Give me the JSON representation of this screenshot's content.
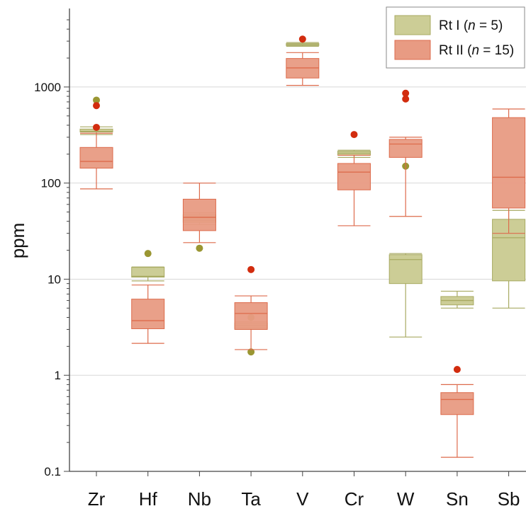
{
  "chart_data": {
    "type": "boxplot",
    "ylabel": "ppm",
    "yscale": "log",
    "ylim": [
      0.1,
      5000
    ],
    "yticks": [
      "0.1",
      "1",
      "10",
      "100",
      "1000"
    ],
    "grid": "horizontal",
    "legend_position": "top-right",
    "categories": [
      "Zr",
      "Hf",
      "Nb",
      "Ta",
      "V",
      "Cr",
      "W",
      "Sn",
      "Sb"
    ],
    "colors": {
      "rt1_fill": "#cccd96",
      "rt1_edge": "#a8aa62",
      "rt1_point": "#9a9632",
      "rt2_fill": "#e89b83",
      "rt2_edge": "#dd6b4c",
      "rt2_point": "#d22c0e"
    },
    "series": [
      {
        "name": "Rt I (n = 5)",
        "legend_main": "Rt I (",
        "legend_n": "n",
        "legend_rest": " = 5)",
        "boxes": [
          {
            "category": "Zr",
            "whisker_low": 320,
            "q1": 340,
            "median": 345,
            "q3": 365,
            "whisker_high": 385,
            "outliers": [
              730
            ]
          },
          {
            "category": "Hf",
            "whisker_low": 9.6,
            "q1": 10.5,
            "median": 10.7,
            "q3": 13.3,
            "whisker_high": 13.4,
            "outliers": [
              18.5
            ]
          },
          {
            "category": "Nb",
            "whisker_low": 37,
            "q1": 39,
            "median": 41,
            "q3": 47,
            "whisker_high": 49,
            "outliers": [
              21
            ]
          },
          {
            "category": "Ta",
            "whisker_low": 3.0,
            "q1": 3.1,
            "median": 3.3,
            "q3": 3.5,
            "whisker_high": 3.6,
            "outliers": [
              4.0,
              1.75
            ]
          },
          {
            "category": "V",
            "whisker_low": 2650,
            "q1": 2700,
            "median": 2760,
            "q3": 2830,
            "whisker_high": 2900,
            "outliers": []
          },
          {
            "category": "Cr",
            "whisker_low": 185,
            "q1": 195,
            "median": 205,
            "q3": 215,
            "whisker_high": 220,
            "outliers": []
          },
          {
            "category": "W",
            "whisker_low": 2.5,
            "q1": 9,
            "median": 16,
            "q3": 18,
            "whisker_high": 18.5,
            "outliers": [
              150
            ]
          },
          {
            "category": "Sn",
            "whisker_low": 5.0,
            "q1": 5.4,
            "median": 6.0,
            "q3": 6.6,
            "whisker_high": 7.5,
            "outliers": []
          },
          {
            "category": "Sb",
            "whisker_low": 5.0,
            "q1": 9.6,
            "median": 27,
            "q3": 42,
            "whisker_high": 52,
            "outliers": []
          }
        ]
      },
      {
        "name": "Rt II (n = 15)",
        "legend_main": "Rt II (",
        "legend_n": "n",
        "legend_rest": " = 15)",
        "boxes": [
          {
            "category": "Zr",
            "whisker_low": 87,
            "q1": 143,
            "median": 168,
            "q3": 235,
            "whisker_high": 330,
            "outliers": [
              380,
              640
            ]
          },
          {
            "category": "Hf",
            "whisker_low": 2.15,
            "q1": 3.05,
            "median": 3.7,
            "q3": 6.2,
            "whisker_high": 8.7,
            "outliers": []
          },
          {
            "category": "Nb",
            "whisker_low": 24,
            "q1": 32,
            "median": 44,
            "q3": 68,
            "whisker_high": 100,
            "outliers": []
          },
          {
            "category": "Ta",
            "whisker_low": 1.85,
            "q1": 3.0,
            "median": 4.4,
            "q3": 5.7,
            "whisker_high": 6.7,
            "outliers": [
              12.6
            ]
          },
          {
            "category": "V",
            "whisker_low": 1040,
            "q1": 1240,
            "median": 1580,
            "q3": 1980,
            "whisker_high": 2280,
            "outliers": [
              3150
            ]
          },
          {
            "category": "Cr",
            "whisker_low": 36,
            "q1": 85,
            "median": 130,
            "q3": 160,
            "whisker_high": 195,
            "outliers": [
              320
            ]
          },
          {
            "category": "W",
            "whisker_low": 45,
            "q1": 185,
            "median": 255,
            "q3": 285,
            "whisker_high": 300,
            "outliers": [
              860,
              750
            ]
          },
          {
            "category": "Sn",
            "whisker_low": 0.14,
            "q1": 0.39,
            "median": 0.56,
            "q3": 0.66,
            "whisker_high": 0.8,
            "outliers": [
              1.15
            ]
          },
          {
            "category": "Sb",
            "whisker_low": 30,
            "q1": 55,
            "median": 115,
            "q3": 480,
            "whisker_high": 590,
            "outliers": []
          }
        ]
      }
    ]
  }
}
